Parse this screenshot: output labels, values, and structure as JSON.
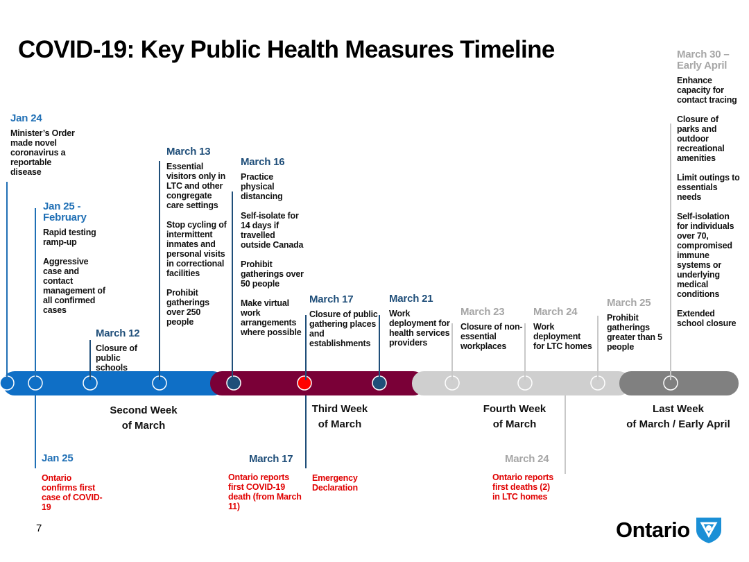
{
  "title": "COVID-19: Key Public Health Measures Timeline",
  "events": [
    {
      "date": "Jan 24",
      "items": [
        "Minister’s Order made novel coronavirus a reportable disease"
      ]
    },
    {
      "date": "Jan 25 - February",
      "items": [
        "Rapid testing ramp-up",
        "Aggressive case and contact management of all confirmed cases"
      ]
    },
    {
      "date": "March 12",
      "items": [
        "Closure of public schools"
      ]
    },
    {
      "date": "March 13",
      "items": [
        "Essential visitors only in LTC and other congregate care settings",
        "Stop cycling of intermittent inmates and personal visits in correctional facilities",
        "Prohibit gatherings over 250 people"
      ]
    },
    {
      "date": "March 16",
      "items": [
        "Practice physical distancing",
        "Self-isolate for 14 days if travelled outside Canada",
        "Prohibit gatherings over 50 people",
        "Make virtual work arrangements where possible"
      ]
    },
    {
      "date": "March 17",
      "items": [
        "Closure of public gathering places and establishments"
      ]
    },
    {
      "date": "March 21",
      "items": [
        "Work deployment for health services providers"
      ]
    },
    {
      "date": "March 23",
      "items": [
        "Closure of non-essential workplaces"
      ]
    },
    {
      "date": "March 24",
      "items": [
        "Work deployment for LTC homes"
      ]
    },
    {
      "date": "March 25",
      "items": [
        "Prohibit gatherings greater than 5 people"
      ]
    },
    {
      "date": "March 30 – Early April",
      "items": [
        "Enhance capacity for contact tracing",
        "Closure of parks and outdoor recreational amenities",
        "Limit outings to essentials needs",
        "Self-isolation for individuals over 70, compromised immune systems or underlying medical conditions",
        "Extended school closure"
      ]
    }
  ],
  "periods": [
    [
      "Second Week",
      "of March"
    ],
    [
      "Third Week",
      "of March"
    ],
    [
      "Fourth Week",
      "of March"
    ],
    [
      "Last Week",
      "of March / Early April"
    ]
  ],
  "notes": [
    {
      "date": "Jan 25",
      "items": [
        "Ontario confirms first case of COVID-19"
      ]
    },
    {
      "date": "March 17",
      "items": [
        "Ontario reports first COVID-19 death (from March 11)",
        "Emergency Declaration"
      ]
    },
    {
      "date": "March 24",
      "items": [
        "Ontario reports first deaths (2) in LTC homes"
      ]
    }
  ],
  "page_number": "7",
  "logo": "Ontario"
}
